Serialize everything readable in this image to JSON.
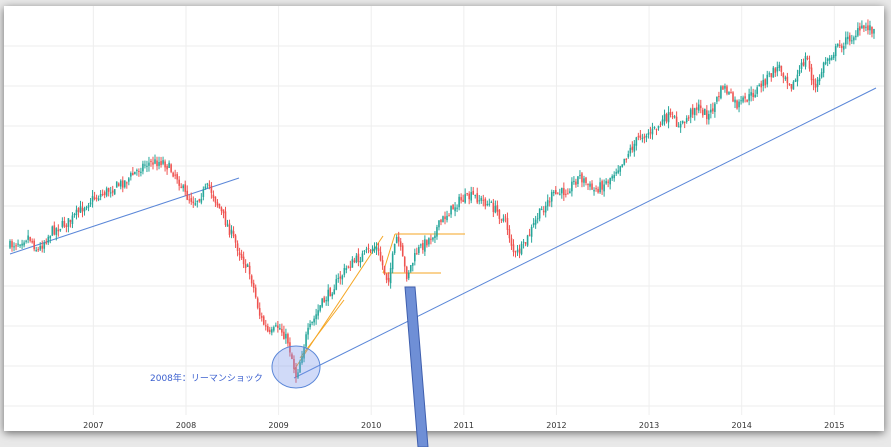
{
  "chart_data": {
    "type": "candlestick",
    "title": "",
    "xlabel": "",
    "ylabel": "",
    "grid": true,
    "x_tick_labels": [
      "2007",
      "2008",
      "2009",
      "2010",
      "2011",
      "2012",
      "2013",
      "2014",
      "2015"
    ],
    "xlim": [
      2006.1,
      2015.45
    ],
    "series": [
      {
        "x": [
          2006.1,
          2006.3,
          2006.4,
          2006.55,
          2006.75,
          2006.95,
          2007.15,
          2007.35,
          2007.55,
          2007.75,
          2007.9,
          2008.0,
          2008.1,
          2008.25,
          2008.4,
          2008.55,
          2008.7,
          2008.8,
          2008.9,
          2009.0,
          2009.1,
          2009.19,
          2009.3,
          2009.45,
          2009.6,
          2009.75,
          2009.9,
          2010.05,
          2010.18,
          2010.28,
          2010.38,
          2010.5,
          2010.65,
          2010.8,
          2010.95,
          2011.1,
          2011.3,
          2011.45,
          2011.55,
          2011.65,
          2011.8,
          2011.95,
          2012.1,
          2012.25,
          2012.4,
          2012.55,
          2012.75,
          2012.9,
          2013.05,
          2013.2,
          2013.35,
          2013.5,
          2013.65,
          2013.8,
          2013.95,
          2014.1,
          2014.25,
          2014.4,
          2014.55,
          2014.7,
          2014.79,
          2014.9,
          2015.05,
          2015.2,
          2015.35,
          2015.45
        ],
        "y": [
          240,
          230,
          245,
          225,
          215,
          195,
          185,
          175,
          158,
          155,
          170,
          190,
          195,
          180,
          210,
          240,
          270,
          310,
          330,
          320,
          335,
          370,
          330,
          300,
          280,
          260,
          250,
          240,
          275,
          230,
          270,
          245,
          230,
          210,
          195,
          190,
          200,
          215,
          250,
          240,
          210,
          190,
          185,
          170,
          185,
          175,
          150,
          130,
          125,
          110,
          120,
          100,
          110,
          80,
          100,
          90,
          75,
          60,
          80,
          50,
          85,
          55,
          40,
          30,
          20,
          25
        ]
      }
    ],
    "annotations": [
      {
        "text": "2008年：リーマンショック"
      }
    ],
    "colors": {
      "up": "#26a69a",
      "down": "#ef5350",
      "trendline": "#5b87d8",
      "channel": "#f5a623",
      "grid": "#eeeeee",
      "pointer": "#6f8fd6"
    }
  }
}
